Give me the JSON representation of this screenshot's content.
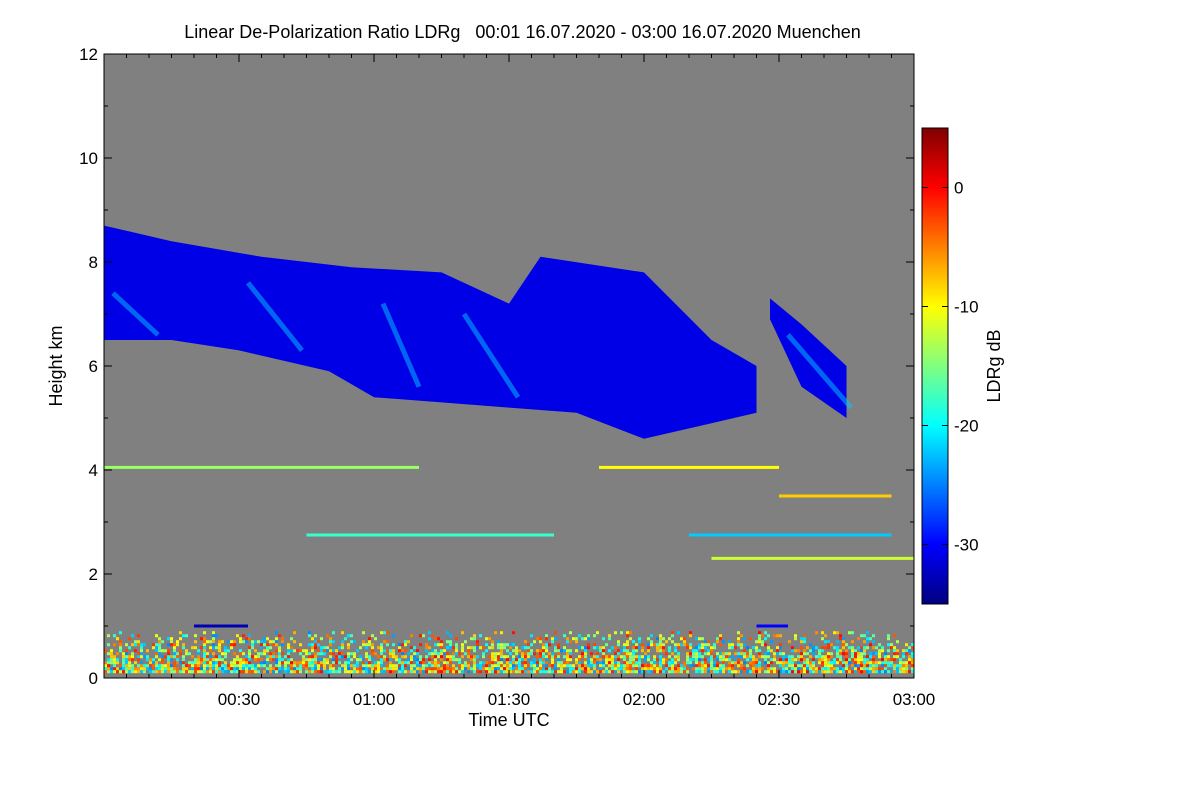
{
  "chart_data": {
    "type": "heatmap",
    "title": "Linear De-Polarization Ratio LDRg   00:01 16.07.2020 - 03:00 16.07.2020 Muenchen",
    "xlabel": "Time UTC",
    "ylabel": "Height km",
    "x_unit": "minutes after 00:00 UTC",
    "xlim": [
      0,
      180
    ],
    "ylim": [
      0,
      12
    ],
    "x_ticks": [
      {
        "value": 30,
        "label": "00:30"
      },
      {
        "value": 60,
        "label": "01:00"
      },
      {
        "value": 90,
        "label": "01:30"
      },
      {
        "value": 120,
        "label": "02:00"
      },
      {
        "value": 150,
        "label": "02:30"
      },
      {
        "value": 180,
        "label": "03:00"
      }
    ],
    "y_ticks": [
      {
        "value": 0,
        "label": "0"
      },
      {
        "value": 2,
        "label": "2"
      },
      {
        "value": 4,
        "label": "4"
      },
      {
        "value": 6,
        "label": "6"
      },
      {
        "value": 8,
        "label": "8"
      },
      {
        "value": 10,
        "label": "10"
      },
      {
        "value": 12,
        "label": "12"
      }
    ],
    "colorbar": {
      "label": "LDRg dB",
      "range": [
        -35,
        5
      ],
      "ticks": [
        {
          "value": 0,
          "label": "0"
        },
        {
          "value": -10,
          "label": "-10"
        },
        {
          "value": -20,
          "label": "-20"
        },
        {
          "value": -30,
          "label": "-30"
        }
      ],
      "colormap": [
        "#000080",
        "#0000ff",
        "#0080ff",
        "#00ffff",
        "#80ff80",
        "#ffff00",
        "#ff8000",
        "#ff0000",
        "#800000"
      ]
    },
    "background_color": "#808080",
    "cloud_layer": {
      "ldr_db": -31,
      "top_km": [
        [
          0,
          8.7
        ],
        [
          15,
          8.4
        ],
        [
          35,
          8.1
        ],
        [
          55,
          7.9
        ],
        [
          75,
          7.8
        ],
        [
          90,
          7.2
        ],
        [
          97,
          8.1
        ],
        [
          120,
          7.8
        ],
        [
          135,
          6.5
        ],
        [
          145,
          6.0
        ]
      ],
      "base_km": [
        [
          0,
          6.5
        ],
        [
          15,
          6.5
        ],
        [
          30,
          6.3
        ],
        [
          50,
          5.9
        ],
        [
          60,
          5.4
        ],
        [
          75,
          5.3
        ],
        [
          90,
          5.2
        ],
        [
          105,
          5.1
        ],
        [
          120,
          4.6
        ],
        [
          135,
          4.9
        ],
        [
          145,
          5.1
        ]
      ]
    },
    "cloud_layer_2": {
      "ldr_db": -31,
      "top_km": [
        [
          148,
          7.3
        ],
        [
          155,
          6.8
        ],
        [
          165,
          6.0
        ]
      ],
      "base_km": [
        [
          148,
          6.9
        ],
        [
          155,
          5.6
        ],
        [
          165,
          5.0
        ]
      ]
    },
    "cloud_base_ldr_db": -22,
    "boundary_layer": {
      "bottom_km": 0.1,
      "top_km": 0.9,
      "ldr_db_range": [
        -25,
        0
      ]
    },
    "aerosol_lines": [
      {
        "height_km": 4.05,
        "t_start": 0,
        "t_end": 70,
        "ldr_db": -14
      },
      {
        "height_km": 4.05,
        "t_start": 110,
        "t_end": 150,
        "ldr_db": -10
      },
      {
        "height_km": 2.3,
        "t_start": 135,
        "t_end": 180,
        "ldr_db": -12
      },
      {
        "height_km": 2.75,
        "t_start": 130,
        "t_end": 175,
        "ldr_db": -22
      },
      {
        "height_km": 3.5,
        "t_start": 150,
        "t_end": 175,
        "ldr_db": -8
      },
      {
        "height_km": 2.75,
        "t_start": 45,
        "t_end": 100,
        "ldr_db": -18
      },
      {
        "height_km": 1.0,
        "t_start": 20,
        "t_end": 32,
        "ldr_db": -33
      },
      {
        "height_km": 1.0,
        "t_start": 145,
        "t_end": 152,
        "ldr_db": -30
      }
    ]
  }
}
